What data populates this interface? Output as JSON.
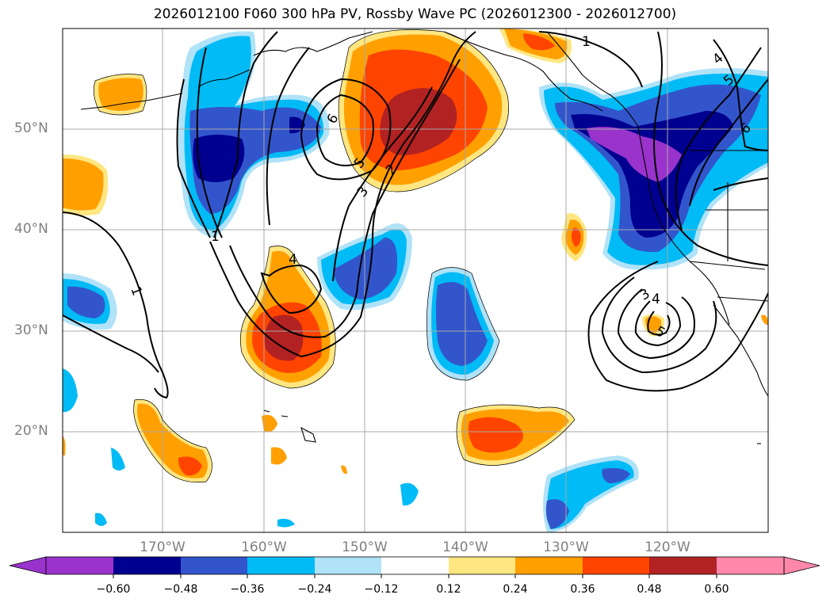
{
  "title": "2026012100 F060 300 hPa PV, Rossby Wave PC (2026012300 - 2026012700)",
  "latitude_labels": [
    "50°N",
    "40°N",
    "30°N",
    "20°N"
  ],
  "longitude_labels": [
    "170°W",
    "160°W",
    "150°W",
    "140°W",
    "130°W",
    "120°W"
  ],
  "colorbar": {
    "tick_labels": [
      "−0.60",
      "−0.48",
      "−0.36",
      "−0.24",
      "−0.12",
      "0.12",
      "0.24",
      "0.36",
      "0.48",
      "0.60"
    ],
    "colors": [
      "#9933cc",
      "#000090",
      "#3355cc",
      "#00bbf5",
      "#b0e2f8",
      "#ffffff",
      "#ffe680",
      "#ffa000",
      "#ff4400",
      "#b22222",
      "#ff88aa"
    ]
  },
  "contour_labels": [
    "1",
    "1",
    "1",
    "4",
    "5",
    "6",
    "6",
    "5",
    "3",
    "2",
    "4",
    "3",
    "4",
    "5"
  ],
  "map_extent": {
    "lon_min": -180,
    "lon_max": -110,
    "lat_min": 10,
    "lat_max": 60
  }
}
